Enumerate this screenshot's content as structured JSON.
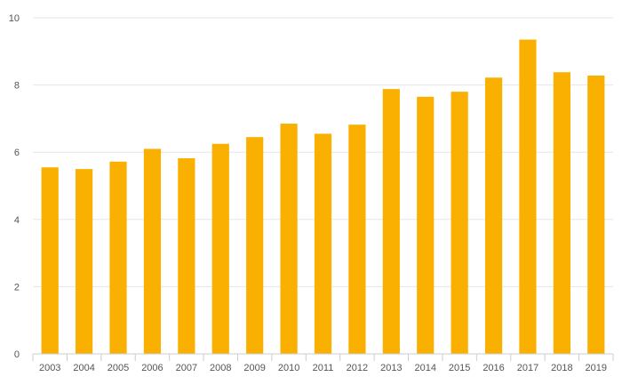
{
  "chart_data": {
    "type": "bar",
    "title": "",
    "xlabel": "",
    "ylabel": "",
    "categories": [
      "2003",
      "2004",
      "2005",
      "2006",
      "2007",
      "2008",
      "2009",
      "2010",
      "2011",
      "2012",
      "2013",
      "2014",
      "2015",
      "2016",
      "2017",
      "2018",
      "2019"
    ],
    "values": [
      5.55,
      5.5,
      5.72,
      6.1,
      5.82,
      6.25,
      6.45,
      6.85,
      6.55,
      6.82,
      7.88,
      7.65,
      7.8,
      8.22,
      9.35,
      8.38,
      8.28
    ],
    "ylim": [
      0,
      10
    ],
    "yticks": [
      0,
      2,
      4,
      6,
      8,
      10
    ],
    "grid": true,
    "legend": "none",
    "bar_color": "#f9b000"
  }
}
